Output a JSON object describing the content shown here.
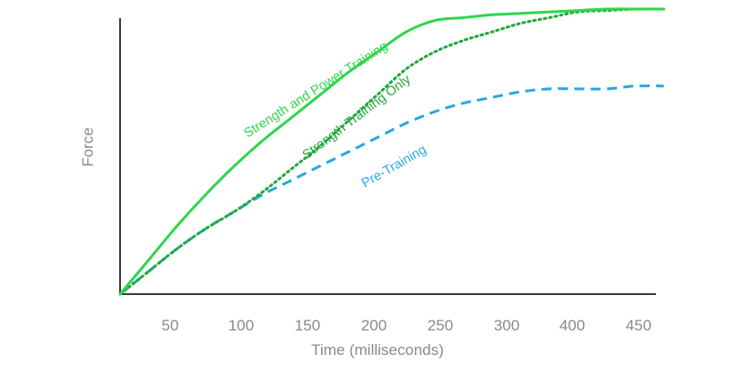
{
  "chart_data": {
    "type": "line",
    "title": "",
    "xlabel": "Time (milliseconds)",
    "ylabel": "Force",
    "xlim": [
      0,
      480
    ],
    "ylim": [
      0,
      100
    ],
    "xticks": [
      50,
      100,
      150,
      200,
      250,
      300,
      400,
      450
    ],
    "grid": false,
    "legend": "inline labels",
    "series": [
      {
        "name": "Strength and Power Training",
        "color": "#2fd64c",
        "style": "solid",
        "x": [
          0,
          25,
          50,
          75,
          100,
          125,
          150,
          175,
          200,
          225,
          250,
          275,
          300,
          325,
          350,
          375,
          400,
          425,
          450,
          475
        ],
        "y": [
          0,
          12,
          24,
          35,
          45,
          54,
          62,
          70,
          78,
          85,
          92,
          96,
          97,
          98,
          98.5,
          99,
          99.5,
          100,
          100,
          100
        ]
      },
      {
        "name": "Strength Training Only",
        "color": "#21a83a",
        "style": "dotted",
        "x": [
          0,
          25,
          50,
          75,
          100,
          125,
          150,
          175,
          200,
          225,
          250,
          275,
          300,
          325,
          350,
          375,
          400,
          425,
          450,
          475
        ],
        "y": [
          0,
          8,
          16,
          23,
          29,
          36,
          44,
          52,
          61,
          70,
          79,
          85,
          89,
          92,
          95,
          97,
          99,
          99.5,
          100,
          100
        ]
      },
      {
        "name": "Pre-Training",
        "color": "#29a8e0",
        "style": "dashed",
        "x": [
          0,
          25,
          50,
          75,
          100,
          125,
          150,
          175,
          200,
          225,
          250,
          275,
          300,
          325,
          350,
          375,
          400,
          425,
          450,
          475
        ],
        "y": [
          0,
          8,
          16,
          23,
          29,
          35,
          40,
          45,
          50,
          55,
          60,
          64,
          67,
          69,
          71,
          72,
          72,
          72,
          73,
          73
        ]
      }
    ]
  },
  "colors": {
    "axis": "#3a3a3a",
    "text": "#8a8a8a",
    "background": "#ffffff"
  }
}
